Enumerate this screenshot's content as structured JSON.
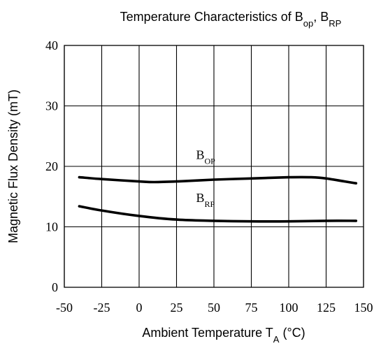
{
  "chart_data": {
    "type": "line",
    "title": {
      "main": "Temperature Characteristics of B",
      "sub1": "op",
      "sep": ", B",
      "sub2": "RP"
    },
    "xlabel": {
      "main": "Ambient Temperature T",
      "sub": "A",
      "tail": " (°C)"
    },
    "ylabel": "Magnetic Flux Density (mT)",
    "xlim": [
      -50,
      150
    ],
    "ylim": [
      0,
      40
    ],
    "x_ticks": [
      "-50",
      "-25",
      "0",
      "25",
      "50",
      "75",
      "100",
      "125",
      "150"
    ],
    "y_ticks": [
      "0",
      "10",
      "20",
      "30",
      "40"
    ],
    "grid": true,
    "series": [
      {
        "name": "OP",
        "label_main": "B",
        "label_sub": "OP",
        "color": "#000000",
        "x": [
          -40,
          -25,
          0,
          10,
          25,
          50,
          75,
          100,
          115,
          125,
          140,
          145
        ],
        "y": [
          18.2,
          17.9,
          17.5,
          17.4,
          17.5,
          17.8,
          18.0,
          18.2,
          18.2,
          18.0,
          17.4,
          17.2
        ]
      },
      {
        "name": "RP",
        "label_main": "B",
        "label_sub": "RP",
        "color": "#000000",
        "x": [
          -40,
          -25,
          0,
          25,
          50,
          75,
          100,
          125,
          145
        ],
        "y": [
          13.4,
          12.7,
          11.8,
          11.2,
          11.0,
          10.9,
          10.9,
          11.0,
          11.0
        ]
      }
    ]
  }
}
